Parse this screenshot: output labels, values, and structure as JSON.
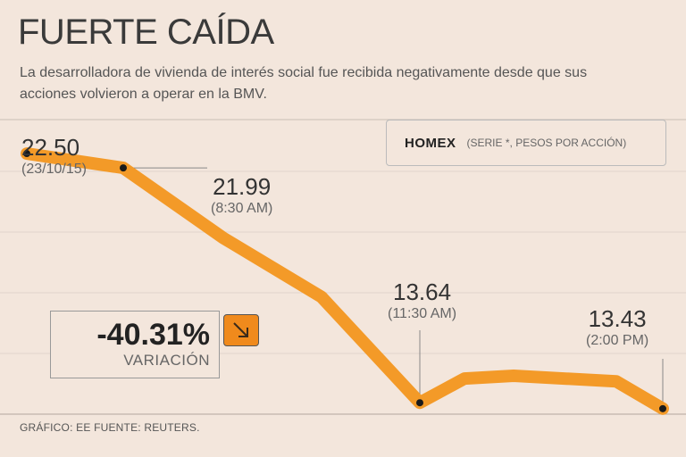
{
  "header": {
    "title": "FUERTE CAÍDA",
    "subtitle": "La desarrolladora de vivienda de interés social fue recibida negativamente desde que sus acciones volvieron a operar en la BMV."
  },
  "legend": {
    "name": "HOMEX",
    "unit": "(SERIE *, PESOS POR ACCIÓN)"
  },
  "variation": {
    "value": "-40.31%",
    "label": "VARIACIÓN",
    "icon": "arrow-down-right-icon"
  },
  "footer": {
    "text": "GRÁFICO: EE  FUENTE: REUTERS."
  },
  "colors": {
    "line": "#f39a28",
    "background": "#f3e6dc",
    "accent": "#f08a1c"
  },
  "chart_data": {
    "type": "line",
    "series": [
      {
        "name": "HOMEX",
        "values": [
          22.5,
          21.99,
          19.5,
          17.4,
          13.64,
          14.5,
          14.6,
          14.4,
          13.43
        ]
      }
    ],
    "labeled_points": [
      {
        "value": "22.50",
        "sub": "(23/10/15)",
        "index": 0
      },
      {
        "value": "21.99",
        "sub": "(8:30 AM)",
        "index": 1
      },
      {
        "value": "13.64",
        "sub": "(11:30 AM)",
        "index": 4
      },
      {
        "value": "13.43",
        "sub": "(2:00 PM)",
        "index": 8
      }
    ],
    "ylim": [
      12.6,
      23.2
    ],
    "grid": true
  }
}
